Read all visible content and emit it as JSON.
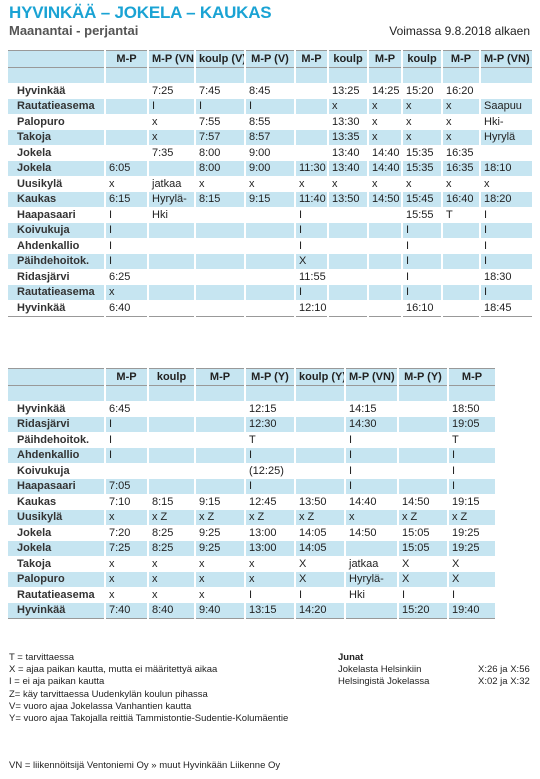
{
  "header": {
    "title": "HYVINKÄÄ – JOKELA – KAUKAS",
    "subtitle": "Maanantai - perjantai",
    "validity": "Voimassa 9.8.2018 alkaen"
  },
  "tables": [
    {
      "columns": [
        "M-P",
        "M-P (VN)",
        "koulp (V)",
        "M-P (V)",
        "M-P",
        "koulp",
        "M-P",
        "koulp",
        "M-P",
        "M-P (VN)"
      ],
      "rows": [
        {
          "stop": "Hyvinkää",
          "times": [
            null,
            "7:25",
            "7:45",
            "8:45",
            null,
            "13:25",
            "14:25",
            "15:20",
            "16:20",
            null
          ]
        },
        {
          "stop": "Rautatieasema",
          "times": [
            null,
            "I",
            "I",
            "I",
            null,
            "x",
            "x",
            "x",
            "x",
            "Saapuu"
          ]
        },
        {
          "stop": "Palopuro",
          "times": [
            null,
            "x",
            "7:55",
            "8:55",
            null,
            "13:30",
            "x",
            "x",
            "x",
            "Hki-"
          ]
        },
        {
          "stop": "Takoja",
          "times": [
            null,
            "x",
            "7:57",
            "8:57",
            null,
            "13:35",
            "x",
            "x",
            "x",
            "Hyrylä"
          ]
        },
        {
          "stop": "Jokela",
          "times": [
            null,
            "7:35",
            "8:00",
            "9:00",
            null,
            "13:40",
            "14:40",
            "15:35",
            "16:35",
            null
          ]
        },
        {
          "stop": "Jokela",
          "times": [
            "6:05",
            null,
            "8:00",
            "9:00",
            "11:30",
            "13:40",
            "14:40",
            "15:35",
            "16:35",
            "18:10"
          ]
        },
        {
          "stop": "Uusikylä",
          "times": [
            "x",
            "jatkaa",
            "x",
            "x",
            "x",
            "x",
            "x",
            "x",
            "x",
            "x"
          ]
        },
        {
          "stop": "Kaukas",
          "times": [
            "6:15",
            "Hyrylä-",
            "8:15",
            "9:15",
            "11:40",
            "13:50",
            "14:50",
            "15:45",
            "16:40",
            "18:20"
          ]
        },
        {
          "stop": "Haapasaari",
          "times": [
            "I",
            "Hki",
            null,
            null,
            "I",
            null,
            null,
            "15:55",
            "T",
            "I"
          ]
        },
        {
          "stop": "Koivukuja",
          "times": [
            "I",
            null,
            null,
            null,
            "I",
            null,
            null,
            "I",
            null,
            "I"
          ]
        },
        {
          "stop": "Ahdenkallio",
          "times": [
            "I",
            null,
            null,
            null,
            "I",
            null,
            null,
            "I",
            null,
            "I"
          ]
        },
        {
          "stop": "Päihdehoitok.",
          "times": [
            "I",
            null,
            null,
            null,
            "X",
            null,
            null,
            "I",
            null,
            "I"
          ]
        },
        {
          "stop": "Ridasjärvi",
          "times": [
            "6:25",
            null,
            null,
            null,
            "11:55",
            null,
            null,
            "I",
            null,
            "18:30"
          ]
        },
        {
          "stop": "Rautatieasema",
          "times": [
            "x",
            null,
            null,
            null,
            "I",
            null,
            null,
            "I",
            null,
            "I"
          ]
        },
        {
          "stop": "Hyvinkää",
          "times": [
            "6:40",
            null,
            null,
            null,
            "12:10",
            null,
            null,
            "16:10",
            null,
            "18:45"
          ]
        }
      ]
    },
    {
      "columns": [
        "M-P",
        "koulp",
        "M-P",
        "M-P (Y)",
        "koulp (Y)",
        "M-P (VN)",
        "M-P (Y)",
        "M-P"
      ],
      "rows": [
        {
          "stop": "Hyvinkää",
          "times": [
            "6:45",
            null,
            null,
            "12:15",
            null,
            "14:15",
            null,
            "18:50"
          ]
        },
        {
          "stop": "Ridasjärvi",
          "times": [
            "I",
            null,
            null,
            "12:30",
            null,
            "14:30",
            null,
            "19:05"
          ]
        },
        {
          "stop": "Päihdehoitok.",
          "times": [
            "I",
            null,
            null,
            "T",
            null,
            "I",
            null,
            "T"
          ]
        },
        {
          "stop": "Ahdenkallio",
          "times": [
            "I",
            null,
            null,
            "I",
            null,
            "I",
            null,
            "I"
          ]
        },
        {
          "stop": "Koivukuja",
          "times": [
            null,
            null,
            null,
            "(12:25)",
            null,
            "I",
            null,
            "I"
          ]
        },
        {
          "stop": "Haapasaari",
          "times": [
            "7:05",
            null,
            null,
            "I",
            null,
            "I",
            null,
            "I"
          ]
        },
        {
          "stop": "Kaukas",
          "times": [
            "7:10",
            "8:15",
            "9:15",
            "12:45",
            "13:50",
            "14:40",
            "14:50",
            "19:15"
          ]
        },
        {
          "stop": "Uusikylä",
          "times": [
            "x",
            "x Z",
            "x Z",
            "x Z",
            "x Z",
            "x",
            "x Z",
            "x Z"
          ]
        },
        {
          "stop": "Jokela",
          "times": [
            "7:20",
            "8:25",
            "9:25",
            "13:00",
            "14:05",
            "14:50",
            "15:05",
            "19:25"
          ]
        },
        {
          "stop": "Jokela",
          "times": [
            "7:25",
            "8:25",
            "9:25",
            "13:00",
            "14:05",
            null,
            "15:05",
            "19:25"
          ]
        },
        {
          "stop": "Takoja",
          "times": [
            "x",
            "x",
            "x",
            "x",
            "X",
            "jatkaa",
            "X",
            "X"
          ]
        },
        {
          "stop": "Palopuro",
          "times": [
            "x",
            "x",
            "x",
            "x",
            "X",
            "Hyrylä-",
            "X",
            "X"
          ]
        },
        {
          "stop": "Rautatieasema",
          "times": [
            "x",
            "x",
            "x",
            "I",
            "I",
            "Hki",
            "I",
            "I"
          ]
        },
        {
          "stop": "Hyvinkää",
          "times": [
            "7:40",
            "8:40",
            "9:40",
            "13:15",
            "14:20",
            null,
            "15:20",
            "19:40"
          ]
        }
      ]
    }
  ],
  "notes": [
    "T = tarvittaessa",
    "X = ajaa paikan kautta, mutta ei määritettyä aikaa",
    "I = ei aja paikan kautta",
    "Z= käy tarvittaessa Uudenkylän koulun pihassa",
    "V= vuoro ajaa Jokelassa Vanhantien kautta",
    "Y= vuoro ajaa Takojalla reittiä Tammistontie-Sudentie-Kolumäentie"
  ],
  "operator_note": "VN = liikennöitsijä Ventoniemi Oy » muut Hyvinkään Liikenne Oy",
  "trains": {
    "title": "Junat",
    "rows": [
      {
        "route": "Jokelasta Helsinkiin",
        "times": "X:26 ja X:56"
      },
      {
        "route": "Helsingistä Jokelassa",
        "times": "X:02 ja X:32"
      }
    ]
  }
}
